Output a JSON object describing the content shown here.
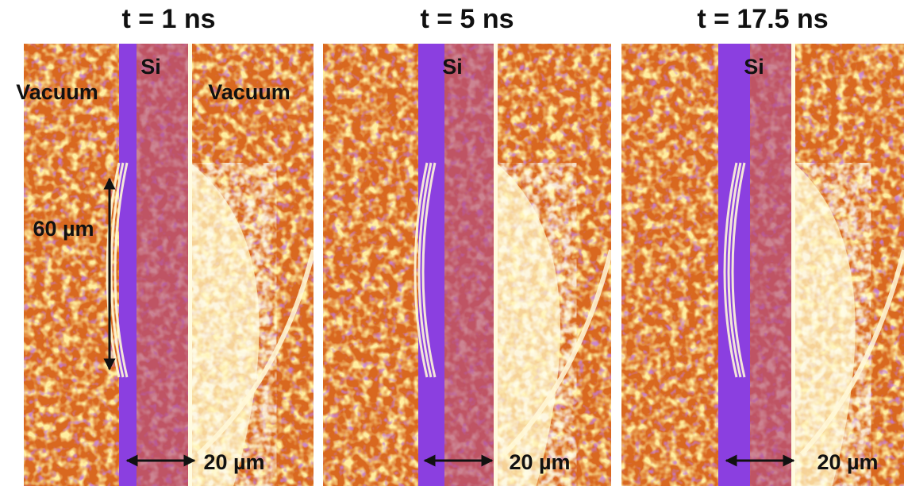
{
  "panels": [
    {
      "title": "t = 1 ns",
      "labels": [
        "Si",
        "Vacuum",
        "Vacuum"
      ],
      "scale_vertical": "60 µm",
      "scale_horizontal": "20 µm"
    },
    {
      "title": "t = 5 ns",
      "labels": [
        "Si"
      ],
      "scale_horizontal": "20 µm"
    },
    {
      "title": "t = 17.5 ns",
      "labels": [
        "Si"
      ],
      "scale_horizontal": "20 µm"
    }
  ]
}
